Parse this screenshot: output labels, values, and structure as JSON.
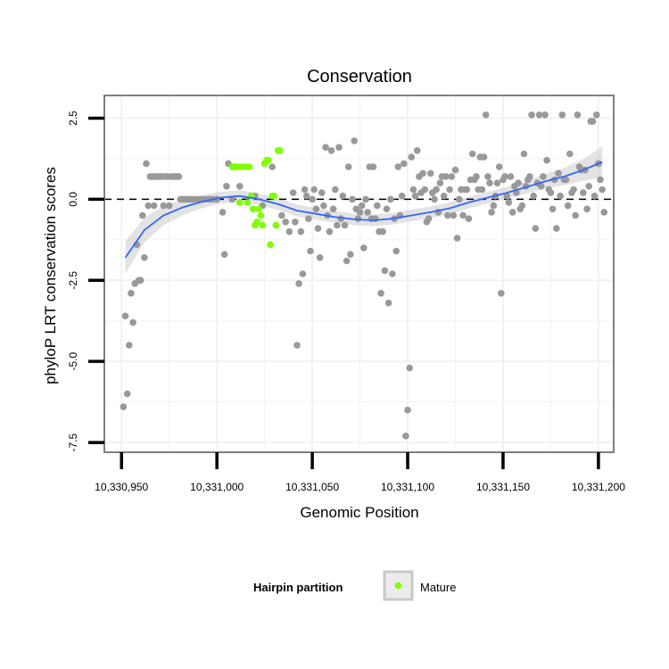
{
  "chart_data": {
    "type": "scatter",
    "title": "Conservation",
    "xlabel": "Genomic Position",
    "ylabel": "phyloP LRT conservation scores",
    "xlim": [
      10330941,
      10331208
    ],
    "ylim": [
      -7.8,
      3.2
    ],
    "x_ticks": [
      {
        "value": 10330950,
        "label": "10,330,950"
      },
      {
        "value": 10331000,
        "label": "10,331,000"
      },
      {
        "value": 10331050,
        "label": "10,331,050"
      },
      {
        "value": 10331100,
        "label": "10,331,100"
      },
      {
        "value": 10331150,
        "label": "10,331,150"
      },
      {
        "value": 10331200,
        "label": "10,331,200"
      }
    ],
    "y_ticks": [
      {
        "value": 2.5,
        "label": "2.5"
      },
      {
        "value": 0,
        "label": "0.0"
      },
      {
        "value": -2.5,
        "label": "-2.5"
      },
      {
        "value": -5,
        "label": "-5.0"
      },
      {
        "value": -7.5,
        "label": "-7.5"
      }
    ],
    "reference_line_y": 0,
    "grid": true,
    "legend": {
      "title": "Hairpin partition",
      "position": "bottom",
      "entries": [
        {
          "label": "Mature",
          "color": "#7fff00"
        }
      ]
    },
    "colors": {
      "other": "#999999",
      "mature": "#7fff00",
      "smooth": "#3366ff",
      "band": "#cccccc"
    },
    "series": [
      {
        "name": "",
        "group": "other",
        "points": [
          [
            10330951,
            -6.4
          ],
          [
            10330952,
            -3.6
          ],
          [
            10330953,
            -6.0
          ],
          [
            10330954,
            -4.5
          ],
          [
            10330955,
            -2.9
          ],
          [
            10330956,
            -3.8
          ],
          [
            10330957,
            -2.6
          ],
          [
            10330958,
            -1.4
          ],
          [
            10330959,
            -2.5
          ],
          [
            10330960,
            -2.5
          ],
          [
            10330961,
            -0.5
          ],
          [
            10330962,
            -1.8
          ],
          [
            10330963,
            1.1
          ],
          [
            10330964,
            -0.2
          ],
          [
            10330965,
            0.7
          ],
          [
            10330966,
            0.7
          ],
          [
            10330967,
            -0.2
          ],
          [
            10330968,
            0.7
          ],
          [
            10330969,
            0.7
          ],
          [
            10330970,
            0.7
          ],
          [
            10330971,
            0.7
          ],
          [
            10330972,
            -0.2
          ],
          [
            10330973,
            0.7
          ],
          [
            10330974,
            0.7
          ],
          [
            10330975,
            -0.2
          ],
          [
            10330976,
            0.7
          ],
          [
            10330977,
            0.7
          ],
          [
            10330978,
            0.7
          ],
          [
            10330979,
            0.7
          ],
          [
            10330980,
            0.7
          ],
          [
            10330981,
            0.0
          ],
          [
            10330982,
            0.0
          ],
          [
            10330983,
            0.0
          ],
          [
            10330984,
            0.0
          ],
          [
            10330985,
            0.0
          ],
          [
            10330986,
            0.0
          ],
          [
            10330987,
            0.0
          ],
          [
            10330988,
            0.0
          ],
          [
            10330990,
            0.0
          ],
          [
            10330992,
            0.0
          ],
          [
            10330994,
            0.0
          ],
          [
            10330996,
            0.0
          ],
          [
            10330998,
            0.0
          ],
          [
            10331000,
            0.0
          ],
          [
            10331003,
            -0.4
          ],
          [
            10331004,
            -1.7
          ],
          [
            10331005,
            0.4
          ],
          [
            10331006,
            1.1
          ],
          [
            10331008,
            0.0
          ],
          [
            10331009,
            1.0
          ],
          [
            10331012,
            0.4
          ],
          [
            10331020,
            0.1
          ],
          [
            10331024,
            -0.2
          ],
          [
            10331029,
            1.0
          ],
          [
            10331031,
            -0.8
          ],
          [
            10331034,
            -0.5
          ],
          [
            10331036,
            -0.7
          ],
          [
            10331038,
            -1.0
          ],
          [
            10331040,
            0.2
          ],
          [
            10331041,
            -0.7
          ],
          [
            10331042,
            -4.5
          ],
          [
            10331043,
            -2.6
          ],
          [
            10331044,
            -1.0
          ],
          [
            10331045,
            -2.3
          ],
          [
            10331046,
            0.3
          ],
          [
            10331047,
            0.1
          ],
          [
            10331048,
            -0.6
          ],
          [
            10331049,
            -1.6
          ],
          [
            10331050,
            0.0
          ],
          [
            10331051,
            0.3
          ],
          [
            10331052,
            -0.3
          ],
          [
            10331053,
            -0.9
          ],
          [
            10331054,
            -1.8
          ],
          [
            10331055,
            0.2
          ],
          [
            10331056,
            -0.2
          ],
          [
            10331057,
            1.6
          ],
          [
            10331058,
            -0.5
          ],
          [
            10331059,
            -1.0
          ],
          [
            10331060,
            1.5
          ],
          [
            10331061,
            -0.3
          ],
          [
            10331062,
            0.3
          ],
          [
            10331063,
            -0.8
          ],
          [
            10331064,
            1.6
          ],
          [
            10331065,
            -0.6
          ],
          [
            10331066,
            0.1
          ],
          [
            10331067,
            -0.8
          ],
          [
            10331068,
            -1.9
          ],
          [
            10331069,
            1.0
          ],
          [
            10331070,
            -1.7
          ],
          [
            10331071,
            0.0
          ],
          [
            10331072,
            1.8
          ],
          [
            10331073,
            -0.3
          ],
          [
            10331074,
            -0.6
          ],
          [
            10331075,
            -0.4
          ],
          [
            10331076,
            -0.2
          ],
          [
            10331077,
            -1.5
          ],
          [
            10331078,
            0.0
          ],
          [
            10331079,
            -0.4
          ],
          [
            10331080,
            1.0
          ],
          [
            10331081,
            -0.6
          ],
          [
            10331082,
            1.0
          ],
          [
            10331083,
            -0.6
          ],
          [
            10331084,
            -0.2
          ],
          [
            10331085,
            -1.0
          ],
          [
            10331086,
            -2.9
          ],
          [
            10331087,
            -1.0
          ],
          [
            10331088,
            -2.2
          ],
          [
            10331089,
            -0.3
          ],
          [
            10331090,
            -3.2
          ],
          [
            10331091,
            0.0
          ],
          [
            10331092,
            -2.3
          ],
          [
            10331093,
            -0.6
          ],
          [
            10331094,
            -1.6
          ],
          [
            10331095,
            1.0
          ],
          [
            10331096,
            -0.5
          ],
          [
            10331097,
            0.1
          ],
          [
            10331098,
            1.1
          ],
          [
            10331099,
            -7.3
          ],
          [
            10331100,
            -6.5
          ],
          [
            10331101,
            -5.2
          ],
          [
            10331102,
            1.3
          ],
          [
            10331103,
            0.3
          ],
          [
            10331104,
            0.1
          ],
          [
            10331105,
            1.5
          ],
          [
            10331106,
            0.7
          ],
          [
            10331107,
            0.2
          ],
          [
            10331108,
            0.8
          ],
          [
            10331109,
            0.3
          ],
          [
            10331110,
            -0.7
          ],
          [
            10331111,
            -0.6
          ],
          [
            10331112,
            0.8
          ],
          [
            10331113,
            0.2
          ],
          [
            10331114,
            0.0
          ],
          [
            10331115,
            0.3
          ],
          [
            10331116,
            -0.4
          ],
          [
            10331117,
            0.5
          ],
          [
            10331118,
            0.7
          ],
          [
            10331119,
            0.1
          ],
          [
            10331120,
            0.7
          ],
          [
            10331121,
            -0.5
          ],
          [
            10331122,
            0.3
          ],
          [
            10331123,
            0.7
          ],
          [
            10331124,
            -0.5
          ],
          [
            10331125,
            0.9
          ],
          [
            10331126,
            -1.2
          ],
          [
            10331127,
            0.0
          ],
          [
            10331128,
            0.3
          ],
          [
            10331129,
            -0.5
          ],
          [
            10331130,
            0.3
          ],
          [
            10331131,
            0.3
          ],
          [
            10331132,
            -0.6
          ],
          [
            10331133,
            0.6
          ],
          [
            10331134,
            1.4
          ],
          [
            10331135,
            0.6
          ],
          [
            10331136,
            0.7
          ],
          [
            10331137,
            0.3
          ],
          [
            10331138,
            1.3
          ],
          [
            10331139,
            0.3
          ],
          [
            10331140,
            1.3
          ],
          [
            10331141,
            2.6
          ],
          [
            10331142,
            0.7
          ],
          [
            10331143,
            0.5
          ],
          [
            10331144,
            -0.4
          ],
          [
            10331145,
            -0.2
          ],
          [
            10331146,
            0.1
          ],
          [
            10331147,
            0.5
          ],
          [
            10331148,
            1.0
          ],
          [
            10331149,
            -2.9
          ],
          [
            10331150,
            0.6
          ],
          [
            10331151,
            0.7
          ],
          [
            10331152,
            0.1
          ],
          [
            10331153,
            -0.1
          ],
          [
            10331154,
            0.7
          ],
          [
            10331155,
            -0.4
          ],
          [
            10331156,
            0.4
          ],
          [
            10331157,
            0.2
          ],
          [
            10331158,
            0.5
          ],
          [
            10331159,
            -0.3
          ],
          [
            10331160,
            -0.2
          ],
          [
            10331161,
            1.4
          ],
          [
            10331162,
            0.4
          ],
          [
            10331163,
            0.6
          ],
          [
            10331164,
            0.7
          ],
          [
            10331165,
            2.6
          ],
          [
            10331166,
            0.1
          ],
          [
            10331167,
            -0.9
          ],
          [
            10331168,
            0.5
          ],
          [
            10331169,
            2.6
          ],
          [
            10331170,
            0.4
          ],
          [
            10331171,
            0.7
          ],
          [
            10331172,
            2.6
          ],
          [
            10331173,
            1.2
          ],
          [
            10331174,
            0.3
          ],
          [
            10331175,
            0.2
          ],
          [
            10331176,
            -0.3
          ],
          [
            10331177,
            0.6
          ],
          [
            10331178,
            -0.9
          ],
          [
            10331179,
            0.8
          ],
          [
            10331180,
            0.1
          ],
          [
            10331181,
            2.6
          ],
          [
            10331182,
            0.6
          ],
          [
            10331183,
            0.6
          ],
          [
            10331184,
            -0.2
          ],
          [
            10331185,
            1.4
          ],
          [
            10331186,
            0.2
          ],
          [
            10331187,
            0.3
          ],
          [
            10331188,
            -0.5
          ],
          [
            10331189,
            2.6
          ],
          [
            10331190,
            1.0
          ],
          [
            10331191,
            0.9
          ],
          [
            10331192,
            0.2
          ],
          [
            10331193,
            0.9
          ],
          [
            10331194,
            -0.3
          ],
          [
            10331195,
            0.4
          ],
          [
            10331196,
            2.4
          ],
          [
            10331197,
            2.4
          ],
          [
            10331198,
            0.1
          ],
          [
            10331199,
            2.6
          ],
          [
            10331200,
            1.1
          ],
          [
            10331201,
            0.6
          ],
          [
            10331202,
            0.3
          ],
          [
            10331203,
            -0.4
          ]
        ]
      },
      {
        "name": "Mature",
        "group": "mature",
        "points": [
          [
            10331008,
            1.0
          ],
          [
            10331009,
            1.0
          ],
          [
            10331010,
            1.0
          ],
          [
            10331011,
            1.0
          ],
          [
            10331012,
            -0.1
          ],
          [
            10331013,
            1.0
          ],
          [
            10331014,
            1.0
          ],
          [
            10331015,
            1.0
          ],
          [
            10331016,
            -0.1
          ],
          [
            10331017,
            1.0
          ],
          [
            10331018,
            0.1
          ],
          [
            10331019,
            -0.3
          ],
          [
            10331020,
            -0.8
          ],
          [
            10331021,
            -0.7
          ],
          [
            10331022,
            -0.3
          ],
          [
            10331023,
            -0.5
          ],
          [
            10331024,
            -0.8
          ],
          [
            10331025,
            1.1
          ],
          [
            10331026,
            1.2
          ],
          [
            10331027,
            1.2
          ],
          [
            10331028,
            -1.4
          ],
          [
            10331029,
            0.1
          ],
          [
            10331030,
            0.1
          ],
          [
            10331031,
            -0.8
          ],
          [
            10331032,
            1.5
          ],
          [
            10331033,
            1.5
          ]
        ]
      }
    ],
    "smooth": {
      "x": [
        10330952,
        10330962,
        10330972,
        10330982,
        10330992,
        10331002,
        10331012,
        10331022,
        10331032,
        10331042,
        10331052,
        10331062,
        10331072,
        10331082,
        10331092,
        10331102,
        10331112,
        10331122,
        10331132,
        10331142,
        10331152,
        10331162,
        10331172,
        10331182,
        10331192,
        10331202
      ],
      "y": [
        -1.8,
        -0.95,
        -0.5,
        -0.25,
        -0.08,
        0.05,
        0.1,
        0.0,
        -0.15,
        -0.35,
        -0.45,
        -0.55,
        -0.62,
        -0.65,
        -0.6,
        -0.5,
        -0.4,
        -0.28,
        -0.1,
        0.05,
        0.2,
        0.37,
        0.55,
        0.7,
        0.9,
        1.15
      ],
      "se": [
        0.5,
        0.38,
        0.3,
        0.25,
        0.2,
        0.18,
        0.18,
        0.18,
        0.18,
        0.18,
        0.18,
        0.18,
        0.18,
        0.18,
        0.18,
        0.18,
        0.18,
        0.18,
        0.18,
        0.18,
        0.18,
        0.2,
        0.22,
        0.27,
        0.33,
        0.48
      ]
    }
  }
}
